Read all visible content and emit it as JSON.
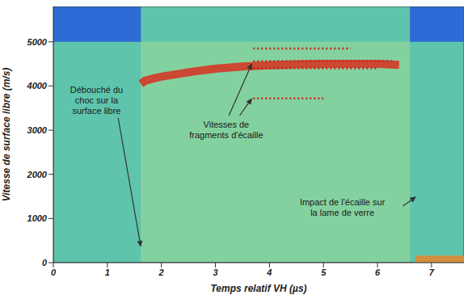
{
  "chart_data": {
    "type": "spectrogram",
    "xlabel": "Temps relatif VH (µs)",
    "ylabel": "Vitesse de surface libre (m/s)",
    "xlim": [
      0,
      7.6
    ],
    "xticks": [
      0,
      1,
      2,
      3,
      4,
      5,
      6,
      7
    ],
    "ylim": [
      0,
      5800
    ],
    "yticks": [
      0,
      1000,
      2000,
      3000,
      4000,
      5000
    ],
    "grid": false,
    "regions": [
      {
        "x": [
          0,
          1.62
        ],
        "y": [
          5000,
          5800
        ],
        "color": "#2d6cd6"
      },
      {
        "x": [
          6.6,
          7.6
        ],
        "y": [
          5000,
          5800
        ],
        "color": "#2d6cd6"
      },
      {
        "x": [
          1.62,
          6.6
        ],
        "y": [
          0,
          5000
        ],
        "color": "#84d1a0"
      }
    ],
    "series": [
      {
        "type": "line",
        "line_style": "band",
        "color": "#d7301f",
        "x": [
          1.62,
          1.7,
          1.85,
          2.0,
          2.3,
          2.6,
          3.0,
          3.5,
          4.0,
          4.5,
          5.0,
          5.5,
          6.0,
          6.4
        ],
        "values": [
          4050,
          4120,
          4170,
          4210,
          4270,
          4330,
          4390,
          4440,
          4470,
          4490,
          4500,
          4500,
          4500,
          4480
        ]
      },
      {
        "type": "line",
        "line_style": "dotted",
        "color": "#c0281a",
        "x": [
          3.7,
          5.5
        ],
        "values": [
          4850,
          4850
        ]
      },
      {
        "type": "line",
        "line_style": "dotted",
        "color": "#c0281a",
        "x": [
          3.7,
          6.3
        ],
        "values": [
          4560,
          4560
        ]
      },
      {
        "type": "line",
        "line_style": "dotted",
        "color": "#c0281a",
        "x": [
          3.7,
          6.0
        ],
        "values": [
          4400,
          4400
        ]
      },
      {
        "type": "line",
        "line_style": "dotted",
        "color": "#c0281a",
        "x": [
          3.7,
          5.0
        ],
        "values": [
          3720,
          3720
        ]
      },
      {
        "type": "line",
        "line_style": "band",
        "color": "#e8862a",
        "x": [
          6.7,
          7.6
        ],
        "values": [
          70,
          70
        ]
      }
    ],
    "annotations": [
      {
        "text": "Débouché du choc sur la surface libre",
        "arrow_to": [
          [
            1.62,
            350
          ]
        ]
      },
      {
        "text": "Vitesses de fragments d'écaille",
        "arrow_to": [
          [
            3.68,
            4520
          ],
          [
            3.68,
            3730
          ]
        ]
      },
      {
        "text": "Impact de l'écaille sur la lame de verre",
        "arrow_to": [
          [
            6.72,
            1500
          ]
        ]
      }
    ]
  }
}
